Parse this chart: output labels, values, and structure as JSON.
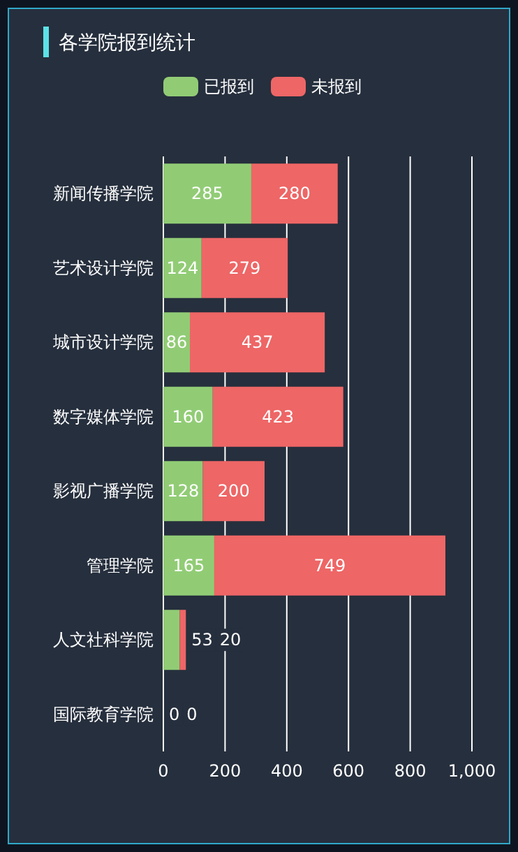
{
  "chart_data": {
    "type": "bar",
    "orientation": "horizontal",
    "stacked": true,
    "title": "各学院报到统计",
    "categories": [
      "新闻传播学院",
      "艺术设计学院",
      "城市设计学院",
      "数字媒体学院",
      "影视广播学院",
      "管理学院",
      "人文社科学院",
      "国际教育学院"
    ],
    "series": [
      {
        "name": "已报到",
        "color": "#91cc75",
        "values": [
          285,
          124,
          86,
          160,
          128,
          165,
          53,
          0
        ]
      },
      {
        "name": "未报到",
        "color": "#ee6666",
        "values": [
          280,
          279,
          437,
          423,
          200,
          749,
          20,
          0
        ]
      }
    ],
    "xlim": [
      0,
      1000
    ],
    "xticks": [
      0,
      200,
      400,
      600,
      800,
      {
        "value": 1000,
        "label": "1,000"
      }
    ],
    "grid": "x",
    "legend": "top",
    "data_labels": true
  }
}
